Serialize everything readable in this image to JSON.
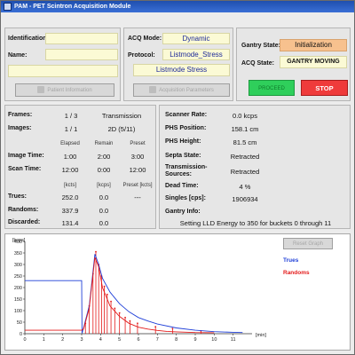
{
  "window": {
    "title": "PAM - PET Scintron Acquisition Module"
  },
  "identification": {
    "identification_label": "Identification:",
    "identification_value": "",
    "name_label": "Name:",
    "name_value": "",
    "extra_value": "",
    "patient_button": "Patient Information"
  },
  "acquisition": {
    "mode_label": "ACQ Mode:",
    "mode_value": "Dynamic",
    "protocol_label": "Protocol:",
    "protocol_value": "Listmode_Stress",
    "protocol_name": "Listmode Stress",
    "params_button": "Acquisition Parameters"
  },
  "gantry": {
    "state_label": "Gantry State:",
    "state_value": "Initialization",
    "acq_state_label": "ACQ State:",
    "acq_state_value": "GANTRY MOVING",
    "proceed_button": "PROCEED",
    "stop_button": "STOP"
  },
  "stats": {
    "frames_label": "Frames:",
    "frames_value": "1 / 3",
    "frames_type": "Transmission",
    "images_label": "Images:",
    "images_value": "1 / 1",
    "images_type": "2D (5/11)",
    "col_elapsed": "Elapsed",
    "col_remain": "Remain",
    "col_preset": "Preset",
    "image_time_label": "Image Time:",
    "image_time": [
      "1:00",
      "2:00",
      "3:00"
    ],
    "scan_time_label": "Scan Time:",
    "scan_time": [
      "12:00",
      "0:00",
      "12:00"
    ],
    "unit_kcts": "[kcts]",
    "unit_kcps": "[kcps]",
    "unit_preset": "Preset [kcts]",
    "trues_label": "Trues:",
    "trues": [
      "252.0",
      "0.0",
      "---"
    ],
    "randoms_label": "Randoms:",
    "randoms": [
      "337.9",
      "0.0"
    ],
    "discarded_label": "Discarded:",
    "discarded": [
      "131.4",
      "0.0"
    ]
  },
  "scanner": {
    "rate_label": "Scanner Rate:",
    "rate_value": "0.0 kcps",
    "phs_pos_label": "PHS Position:",
    "phs_pos_value": "158.1 cm",
    "phs_height_label": "PHS Height:",
    "phs_height_value": "81.5 cm",
    "septa_label": "Septa State:",
    "septa_value": "Retracted",
    "trans_label": "Transmission-",
    "trans_label2": "Sources:",
    "trans_value": "Retracted",
    "dead_label": "Dead Time:",
    "dead_value": "4 %",
    "singles_label": "Singles [cps]:",
    "singles_value": "1906934",
    "gantry_info_label": "Gantry Info:",
    "gantry_info_value": "Setting LLD Energy to 350 for buckets 0 through 11"
  },
  "graph": {
    "reset_button": "Reset Graph",
    "unit_y": "[kcps]",
    "unit_x": "[min]"
  },
  "chart_data": {
    "type": "line",
    "ylabel": "[kcps]",
    "xlabel": "[min]",
    "xlim": [
      0,
      12
    ],
    "ylim": [
      0,
      400
    ],
    "xticks": [
      0,
      1,
      2,
      3,
      4,
      5,
      6,
      7,
      8,
      9,
      10,
      11
    ],
    "yticks": [
      0,
      50,
      100,
      150,
      200,
      250,
      300,
      350,
      400
    ],
    "series": [
      {
        "name": "Trues",
        "color": "#1f3fd8",
        "x": [
          0,
          0.05,
          3.0,
          3.02,
          3.1,
          3.4,
          3.7,
          3.9,
          4.1,
          4.5,
          5,
          5.5,
          6,
          6.5,
          7,
          8,
          9,
          10,
          11,
          11.5
        ],
        "y": [
          230,
          230,
          230,
          2,
          25,
          120,
          345,
          300,
          240,
          180,
          130,
          95,
          70,
          55,
          42,
          25,
          15,
          9,
          6,
          5
        ]
      },
      {
        "name": "Randoms",
        "color": "#e31a1a",
        "x": [
          0,
          3.0,
          3.1,
          3.4,
          3.7,
          3.9,
          4.1,
          4.5,
          5,
          5.5,
          6,
          6.5,
          7,
          7.5,
          8,
          9,
          10
        ],
        "y": [
          15,
          15,
          20,
          110,
          330,
          290,
          200,
          120,
          75,
          45,
          28,
          20,
          14,
          10,
          8,
          5,
          4
        ]
      }
    ],
    "spikes_x": [
      3.2,
      3.4,
      3.6,
      3.75,
      3.9,
      4.05,
      4.2,
      4.35,
      4.55,
      4.75,
      5.0,
      5.3,
      5.55,
      5.95,
      6.9,
      7.8,
      9.3
    ],
    "spikes_y": [
      45,
      120,
      260,
      355,
      300,
      250,
      205,
      170,
      140,
      110,
      90,
      70,
      55,
      45,
      30,
      22,
      12
    ],
    "legend_position": "top-right"
  },
  "colors": {
    "stop": "#ef3b3b",
    "proceed": "#2fcf5b",
    "initialization": "#f7c18e",
    "field": "#fbfad5"
  }
}
